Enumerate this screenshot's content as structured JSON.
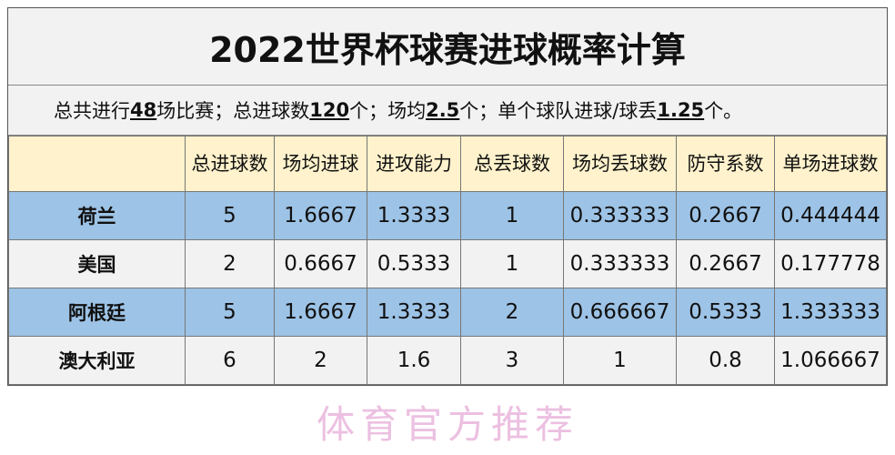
{
  "title": "2022世界杯球赛进球概率计算",
  "summary": {
    "p1": "总共进行",
    "v1": "48",
    "p2": "场比赛；总进球数",
    "v2": "120",
    "p3": "个；场均",
    "v3": "2.5",
    "p4": "个；单个球队进球/球丢",
    "v4": "1.25",
    "p5": "个。"
  },
  "headers": [
    "",
    "总进球数",
    "场均进球",
    "进攻能力",
    "总丢球数",
    "场均丢球数",
    "防守系数",
    "单场进球数"
  ],
  "rows": [
    {
      "team": "荷兰",
      "values": [
        "5",
        "1.6667",
        "1.3333",
        "1",
        "0.333333",
        "0.2667",
        "0.444444"
      ]
    },
    {
      "team": "美国",
      "values": [
        "2",
        "0.6667",
        "0.5333",
        "1",
        "0.333333",
        "0.2667",
        "0.177778"
      ]
    },
    {
      "team": "阿根廷",
      "values": [
        "5",
        "1.6667",
        "1.3333",
        "2",
        "0.666667",
        "0.5333",
        "1.333333"
      ]
    },
    {
      "team": "澳大利亚",
      "values": [
        "6",
        "2",
        "1.6",
        "3",
        "1",
        "0.8",
        "1.066667"
      ]
    }
  ],
  "watermark": "体育官方推荐",
  "colors": {
    "header_bg": "#fff2cc",
    "row_blue": "#9dc3e6",
    "row_light": "#f2f2f2",
    "watermark": "#dc8cc8"
  }
}
